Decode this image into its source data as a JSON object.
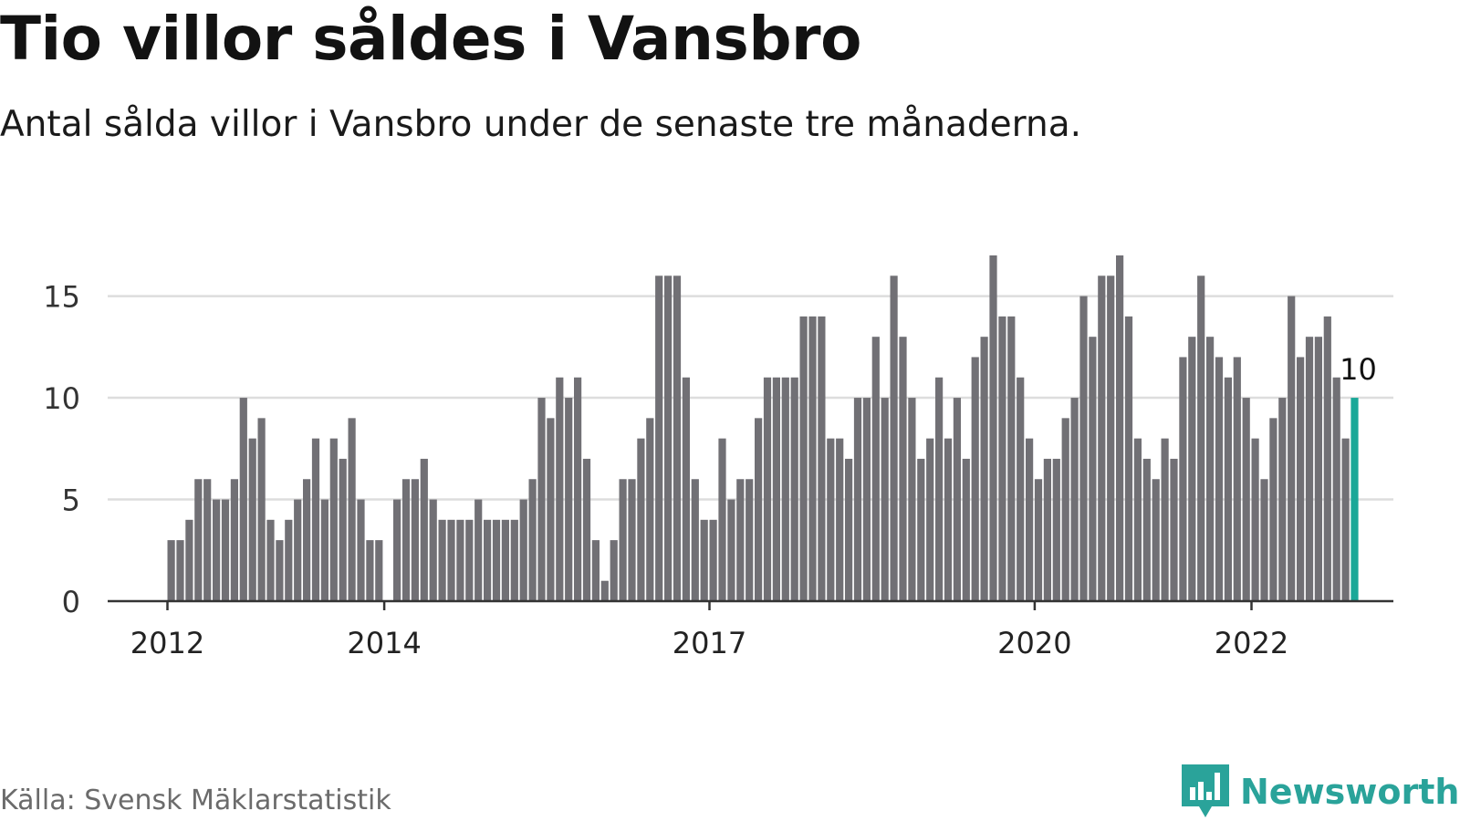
{
  "header": {
    "title": "Tio villor såldes i Vansbro",
    "subtitle": "Antal sålda villor i Vansbro under de senaste tre månaderna."
  },
  "footer": {
    "source": "Källa: Svensk Mäklarstatistik",
    "brand": "Newsworthy"
  },
  "colors": {
    "bar": "#717075",
    "highlight": "#1aa898",
    "grid": "#dddddd",
    "axis": "#333333",
    "brand": "#2aa39a"
  },
  "icons": {
    "brand_logo": "bar-chart-speech-bubble-icon"
  },
  "chart_data": {
    "type": "bar",
    "title": "Tio villor såldes i Vansbro",
    "subtitle": "Antal sålda villor i Vansbro under de senaste tre månaderna.",
    "x_start": "2012-01",
    "x_interval": "month",
    "xlabel": "",
    "ylabel": "",
    "ylim": [
      0,
      17
    ],
    "y_ticks": [
      0,
      5,
      10,
      15
    ],
    "x_ticks": [
      "2012",
      "2014",
      "2017",
      "2020",
      "2022"
    ],
    "grid": true,
    "values": [
      3,
      3,
      4,
      6,
      6,
      5,
      5,
      6,
      10,
      8,
      9,
      4,
      3,
      4,
      5,
      6,
      8,
      5,
      8,
      7,
      9,
      5,
      3,
      3,
      0,
      5,
      6,
      6,
      7,
      5,
      4,
      4,
      4,
      4,
      5,
      4,
      4,
      4,
      4,
      5,
      6,
      10,
      9,
      11,
      10,
      11,
      7,
      3,
      1,
      3,
      6,
      6,
      8,
      9,
      16,
      16,
      16,
      11,
      6,
      4,
      4,
      8,
      5,
      6,
      6,
      9,
      11,
      11,
      11,
      11,
      14,
      14,
      14,
      8,
      8,
      7,
      10,
      10,
      13,
      10,
      16,
      13,
      10,
      7,
      8,
      11,
      8,
      10,
      7,
      12,
      13,
      17,
      14,
      14,
      11,
      8,
      6,
      7,
      7,
      9,
      10,
      15,
      13,
      16,
      16,
      17,
      14,
      8,
      7,
      6,
      8,
      7,
      12,
      13,
      16,
      13,
      12,
      11,
      12,
      10,
      8,
      6,
      9,
      10,
      15,
      12,
      13,
      13,
      14,
      11,
      8,
      10
    ],
    "highlight_last": true,
    "annotation": "10"
  }
}
